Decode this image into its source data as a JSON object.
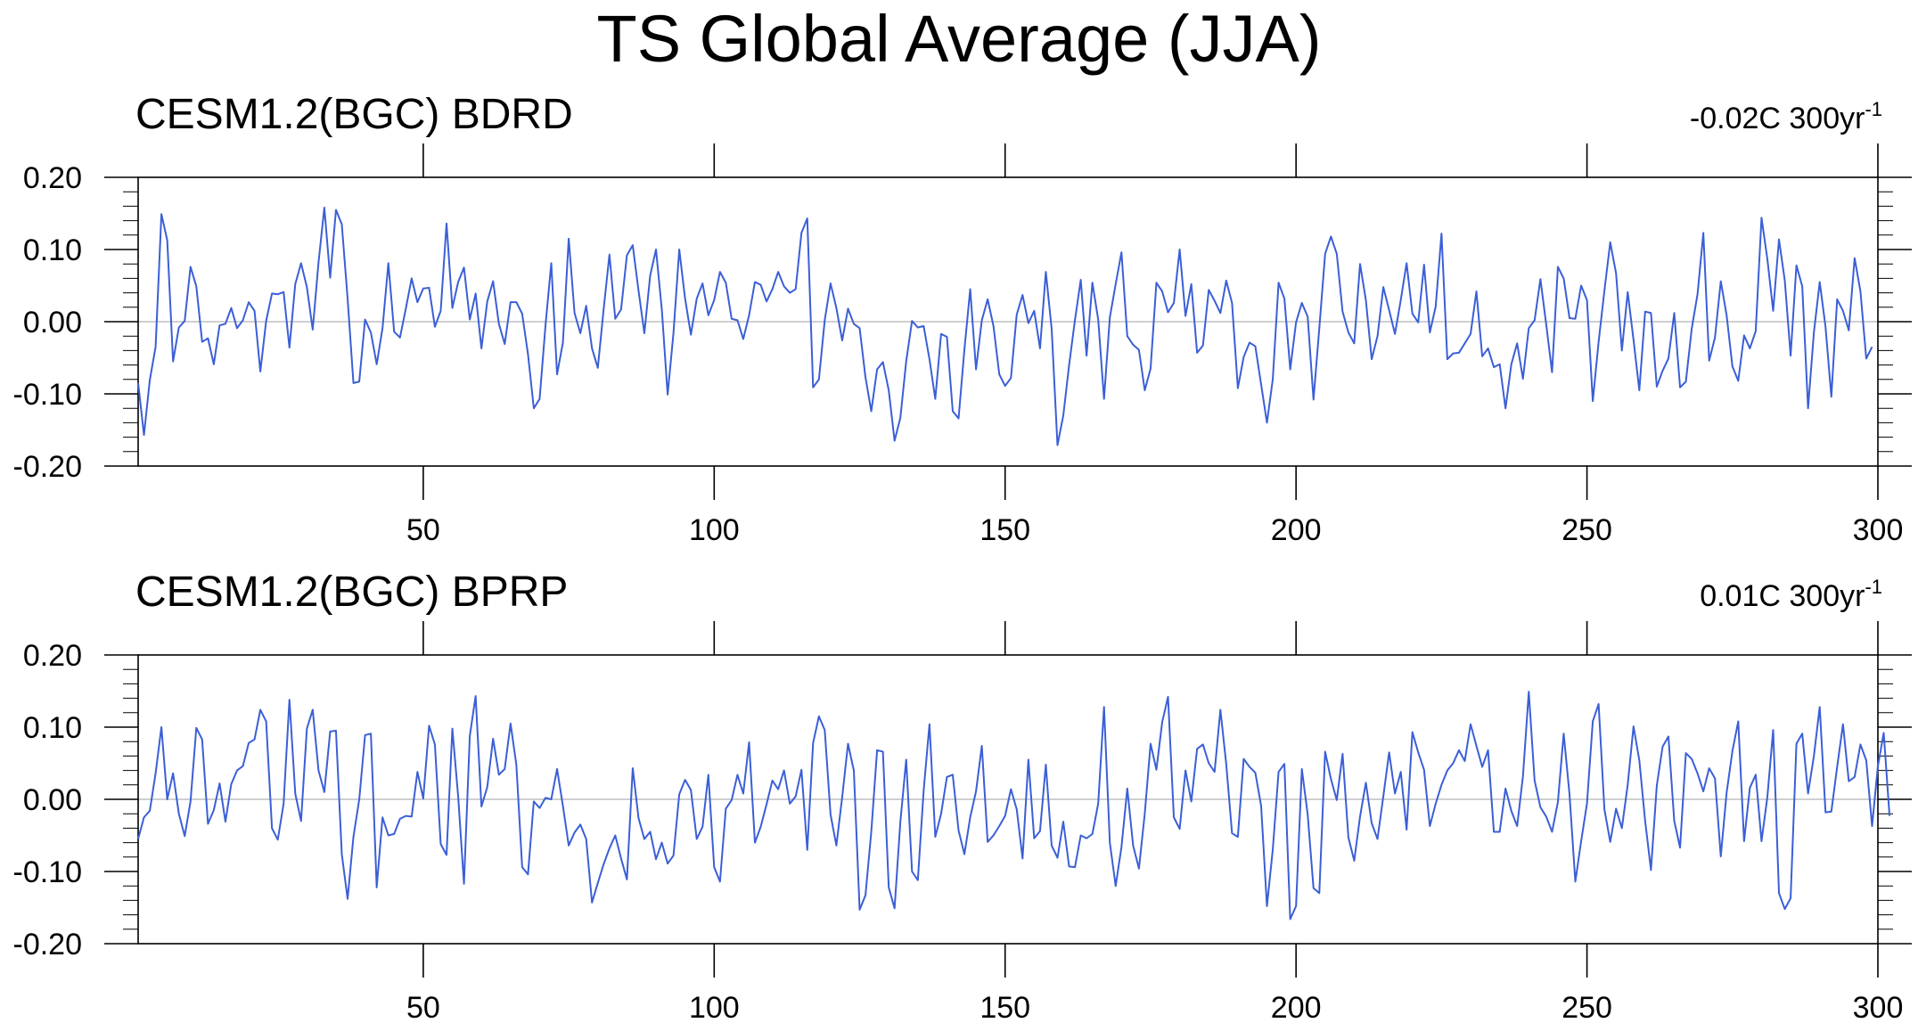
{
  "title": "TS Global Average (JJA)",
  "line_color": "#3b5fd6",
  "chart_data": [
    {
      "type": "line",
      "title": "CESM1.2(BGC) BDRD",
      "trend_label": "-0.02C 300yr",
      "trend_superscript": "-1",
      "xlim": [
        1,
        300
      ],
      "ylim": [
        -0.2,
        0.2
      ],
      "xticks": [
        50,
        100,
        150,
        200,
        250,
        300
      ],
      "xtick_labels": [
        "50",
        "100",
        "150",
        "200",
        "250",
        "300"
      ],
      "yticks": [
        -0.2,
        -0.1,
        0.0,
        0.1,
        0.2
      ],
      "ytick_labels": [
        "-0.20",
        "-0.10",
        "0.00",
        "0.10",
        "0.20"
      ],
      "reference_line": 0.0,
      "x_start": 1,
      "x_step": 1,
      "values": [
        -0.085,
        -0.157,
        -0.081,
        -0.035,
        0.149,
        0.113,
        -0.055,
        -0.008,
        0.001,
        0.076,
        0.049,
        -0.028,
        -0.023,
        -0.059,
        -0.005,
        -0.003,
        0.019,
        -0.009,
        0.002,
        0.027,
        0.015,
        -0.069,
        0.001,
        0.039,
        0.038,
        0.041,
        -0.036,
        0.052,
        0.081,
        0.048,
        -0.011,
        0.082,
        0.158,
        0.061,
        0.155,
        0.135,
        0.032,
        -0.085,
        -0.083,
        0.003,
        -0.015,
        -0.059,
        -0.009,
        0.081,
        -0.014,
        -0.022,
        0.018,
        0.06,
        0.027,
        0.046,
        0.047,
        -0.007,
        0.015,
        0.136,
        0.019,
        0.055,
        0.075,
        0.003,
        0.039,
        -0.037,
        0.028,
        0.056,
        -0.003,
        -0.031,
        0.027,
        0.027,
        0.011,
        -0.045,
        -0.12,
        -0.107,
        -0.006,
        0.081,
        -0.073,
        -0.029,
        0.115,
        0.012,
        -0.016,
        0.022,
        -0.037,
        -0.064,
        0.017,
        0.093,
        0.004,
        0.017,
        0.092,
        0.106,
        0.043,
        -0.016,
        0.064,
        0.1,
        0.017,
        -0.101,
        -0.016,
        0.1,
        0.032,
        -0.018,
        0.032,
        0.053,
        0.009,
        0.03,
        0.069,
        0.054,
        0.004,
        0.002,
        -0.024,
        0.009,
        0.055,
        0.051,
        0.028,
        0.045,
        0.069,
        0.049,
        0.04,
        0.045,
        0.123,
        0.143,
        -0.091,
        -0.08,
        0.002,
        0.053,
        0.019,
        -0.026,
        0.018,
        -0.003,
        -0.009,
        -0.077,
        -0.124,
        -0.066,
        -0.056,
        -0.095,
        -0.165,
        -0.133,
        -0.055,
        0.001,
        -0.008,
        -0.006,
        -0.052,
        -0.107,
        -0.017,
        -0.021,
        -0.124,
        -0.134,
        -0.039,
        0.045,
        -0.066,
        0.002,
        0.031,
        -0.006,
        -0.073,
        -0.089,
        -0.078,
        0.01,
        0.037,
        -0.002,
        0.015,
        -0.037,
        0.069,
        -0.01,
        -0.171,
        -0.13,
        -0.06,
        0.002,
        0.058,
        -0.047,
        0.054,
        0.003,
        -0.107,
        0.006,
        0.052,
        0.096,
        -0.02,
        -0.032,
        -0.039,
        -0.095,
        -0.065,
        0.054,
        0.042,
        0.013,
        0.026,
        0.1,
        0.008,
        0.052,
        -0.043,
        -0.033,
        0.044,
        0.029,
        0.012,
        0.057,
        0.026,
        -0.092,
        -0.049,
        -0.029,
        -0.034,
        -0.087,
        -0.14,
        -0.08,
        0.054,
        0.032,
        -0.066,
        -0.001,
        0.026,
        0.007,
        -0.108,
        -0.009,
        0.094,
        0.118,
        0.094,
        0.014,
        -0.015,
        -0.03,
        0.08,
        0.03,
        -0.052,
        -0.02,
        0.048,
        0.016,
        -0.017,
        0.03,
        0.081,
        0.011,
        -0.001,
        0.079,
        -0.015,
        0.021,
        0.122,
        -0.052,
        -0.044,
        -0.043,
        -0.03,
        -0.017,
        0.042,
        -0.048,
        -0.037,
        -0.063,
        -0.059,
        -0.12,
        -0.059,
        -0.03,
        -0.079,
        -0.009,
        0.002,
        0.059,
        -0.004,
        -0.07,
        0.076,
        0.06,
        0.005,
        0.004,
        0.05,
        0.03,
        -0.11,
        -0.028,
        0.043,
        0.11,
        0.067,
        -0.04,
        0.041,
        -0.025,
        -0.095,
        0.014,
        0.012,
        -0.09,
        -0.068,
        -0.051,
        0.012,
        -0.091,
        -0.083,
        -0.01,
        0.038,
        0.123,
        -0.054,
        -0.022,
        0.056,
        0.009,
        -0.062,
        -0.082,
        -0.019,
        -0.037,
        -0.013,
        0.144,
        0.087,
        0.015,
        0.114,
        0.057,
        -0.047,
        0.078,
        0.049,
        -0.12,
        -0.015,
        0.055,
        -0.007,
        -0.104,
        0.031,
        0.015,
        -0.012,
        0.088,
        0.042,
        -0.051,
        -0.035
      ]
    },
    {
      "type": "line",
      "title": "CESM1.2(BGC) BPRP",
      "trend_label": "0.01C 300yr",
      "trend_superscript": "-1",
      "xlim": [
        1,
        300
      ],
      "ylim": [
        -0.2,
        0.2
      ],
      "xticks": [
        50,
        100,
        150,
        200,
        250,
        300
      ],
      "xtick_labels": [
        "50",
        "100",
        "150",
        "200",
        "250",
        "300"
      ],
      "yticks": [
        -0.2,
        -0.1,
        0.0,
        0.1,
        0.2
      ],
      "ytick_labels": [
        "-0.20",
        "-0.10",
        "0.00",
        "0.10",
        "0.20"
      ],
      "reference_line": 0.0,
      "x_start": 1,
      "x_step": 1,
      "values": [
        -0.055,
        -0.025,
        -0.016,
        0.036,
        0.1,
        0.0,
        0.036,
        -0.02,
        -0.051,
        -0.003,
        0.099,
        0.083,
        -0.034,
        -0.015,
        0.022,
        -0.031,
        0.021,
        0.04,
        0.046,
        0.078,
        0.083,
        0.124,
        0.108,
        -0.04,
        -0.056,
        -0.006,
        0.138,
        0.008,
        -0.03,
        0.098,
        0.124,
        0.04,
        0.01,
        0.094,
        0.095,
        -0.076,
        -0.138,
        -0.052,
        0.0,
        0.089,
        0.091,
        -0.122,
        -0.025,
        -0.05,
        -0.048,
        -0.027,
        -0.023,
        -0.024,
        0.038,
        0.001,
        0.102,
        0.076,
        -0.062,
        -0.077,
        0.098,
        0.004,
        -0.117,
        0.088,
        0.143,
        -0.01,
        0.017,
        0.084,
        0.034,
        0.042,
        0.105,
        0.048,
        -0.094,
        -0.104,
        -0.003,
        -0.012,
        0.002,
        0.0,
        0.042,
        -0.009,
        -0.064,
        -0.046,
        -0.035,
        -0.055,
        -0.143,
        -0.116,
        -0.09,
        -0.068,
        -0.05,
        -0.082,
        -0.111,
        0.043,
        -0.026,
        -0.055,
        -0.045,
        -0.083,
        -0.06,
        -0.089,
        -0.078,
        0.007,
        0.027,
        0.013,
        -0.055,
        -0.038,
        0.034,
        -0.094,
        -0.114,
        -0.013,
        -0.001,
        0.034,
        0.008,
        0.079,
        -0.06,
        -0.038,
        -0.007,
        0.026,
        0.014,
        0.04,
        -0.006,
        0.004,
        0.041,
        -0.07,
        0.078,
        0.115,
        0.096,
        -0.021,
        -0.064,
        0.003,
        0.077,
        0.04,
        -0.153,
        -0.133,
        -0.045,
        0.068,
        0.066,
        -0.122,
        -0.151,
        -0.031,
        0.055,
        -0.1,
        -0.112,
        0.012,
        0.104,
        -0.052,
        -0.02,
        0.031,
        0.034,
        -0.043,
        -0.076,
        -0.025,
        0.011,
        0.074,
        -0.059,
        -0.05,
        -0.037,
        -0.023,
        0.014,
        -0.014,
        -0.082,
        0.055,
        -0.054,
        -0.044,
        0.048,
        -0.064,
        -0.081,
        -0.031,
        -0.093,
        -0.094,
        -0.05,
        -0.054,
        -0.048,
        -0.006,
        0.128,
        -0.06,
        -0.12,
        -0.066,
        0.015,
        -0.064,
        -0.096,
        -0.02,
        0.077,
        0.041,
        0.107,
        0.142,
        -0.025,
        -0.041,
        0.04,
        -0.003,
        0.07,
        0.076,
        0.05,
        0.038,
        0.124,
        0.049,
        -0.047,
        -0.052,
        0.056,
        0.045,
        0.037,
        -0.009,
        -0.148,
        -0.07,
        0.038,
        0.049,
        -0.166,
        -0.148,
        0.042,
        -0.021,
        -0.123,
        -0.13,
        0.066,
        0.028,
        -0.001,
        0.063,
        -0.053,
        -0.085,
        -0.024,
        0.023,
        -0.033,
        -0.055,
        0.004,
        0.065,
        0.008,
        0.038,
        -0.042,
        0.093,
        0.065,
        0.041,
        -0.037,
        -0.006,
        0.02,
        0.04,
        0.05,
        0.068,
        0.053,
        0.104,
        0.074,
        0.045,
        0.068,
        -0.045,
        -0.045,
        0.015,
        -0.016,
        -0.037,
        0.032,
        0.149,
        0.026,
        -0.011,
        -0.024,
        -0.045,
        -0.004,
        0.091,
        0.007,
        -0.114,
        -0.058,
        -0.006,
        0.108,
        0.132,
        -0.014,
        -0.059,
        -0.013,
        -0.04,
        0.02,
        0.101,
        0.054,
        -0.03,
        -0.098,
        0.019,
        0.073,
        0.087,
        -0.03,
        -0.067,
        0.064,
        0.056,
        0.036,
        0.011,
        0.043,
        0.029,
        -0.079,
        0.009,
        0.067,
        0.108,
        -0.058,
        0.016,
        0.034,
        -0.058,
        0.003,
        0.096,
        -0.13,
        -0.152,
        -0.137,
        0.077,
        0.091,
        0.008,
        0.06,
        0.128,
        -0.018,
        -0.017,
        0.045,
        0.104,
        0.025,
        0.031,
        0.076,
        0.054,
        -0.037,
        0.046,
        0.092,
        -0.023
      ]
    }
  ]
}
